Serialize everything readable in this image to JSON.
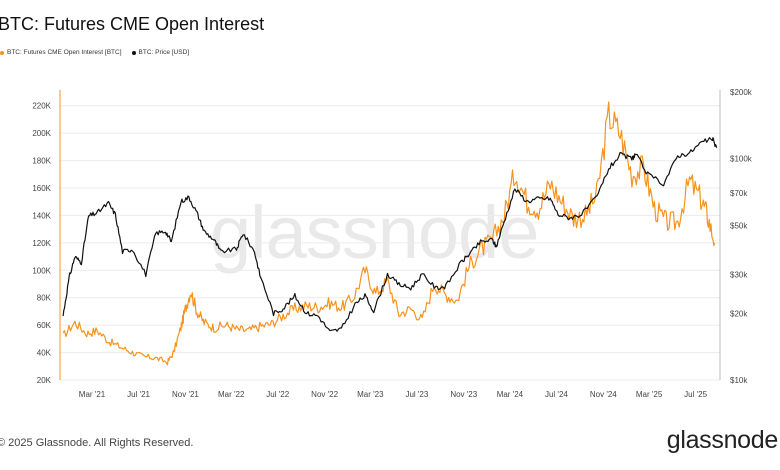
{
  "header": {
    "title": "BTC: Futures CME Open Interest",
    "legend": [
      {
        "label": "BTC: Futures CME Open Interest [BTC]",
        "color": "#f7931a"
      },
      {
        "label": "BTC: Price [USD]",
        "color": "#111111"
      }
    ]
  },
  "footer": {
    "copyright": "© 2025 Glassnode. All Rights Reserved.",
    "brand": "glassnode"
  },
  "watermark": "glassnode",
  "chart_data": {
    "type": "line",
    "x_ticks": [
      "Mar '21",
      "Jul '21",
      "Nov '21",
      "Mar '22",
      "Jul '22",
      "Nov '22",
      "Mar '23",
      "Jul '23",
      "Nov '23",
      "Mar '24",
      "Jul '24",
      "Nov '24",
      "Mar '25",
      "Jul '25"
    ],
    "y_left": {
      "ticks": [
        "20K",
        "40K",
        "60K",
        "80K",
        "100K",
        "120K",
        "140K",
        "160K",
        "180K",
        "200K",
        "220K"
      ],
      "lim": [
        20000,
        230000
      ]
    },
    "y_right": {
      "ticks": [
        "$10k",
        "$20k",
        "$30k",
        "$50k",
        "$70k",
        "$100k",
        "$200k"
      ],
      "tick_values": [
        10000,
        20000,
        30000,
        50000,
        70000,
        100000,
        200000
      ],
      "scale": "log",
      "lim": [
        10000,
        200000
      ]
    },
    "grid": true,
    "series": [
      {
        "name": "BTC: Futures CME Open Interest [BTC]",
        "axis": "left",
        "color": "#f7931a",
        "points": [
          [
            "2020-12-15",
            52000
          ],
          [
            "2021-01-15",
            62000
          ],
          [
            "2021-02-15",
            54000
          ],
          [
            "2021-03-15",
            56000
          ],
          [
            "2021-04-15",
            48000
          ],
          [
            "2021-05-15",
            44000
          ],
          [
            "2021-06-15",
            40000
          ],
          [
            "2021-07-15",
            37000
          ],
          [
            "2021-08-15",
            36000
          ],
          [
            "2021-09-15",
            33000
          ],
          [
            "2021-10-01",
            40000
          ],
          [
            "2021-10-20",
            58000
          ],
          [
            "2021-11-01",
            72000
          ],
          [
            "2021-11-15",
            85000
          ],
          [
            "2021-12-01",
            70000
          ],
          [
            "2021-12-20",
            62000
          ],
          [
            "2022-01-15",
            58000
          ],
          [
            "2022-02-15",
            60000
          ],
          [
            "2022-03-15",
            57000
          ],
          [
            "2022-04-15",
            56000
          ],
          [
            "2022-05-15",
            59000
          ],
          [
            "2022-06-15",
            61000
          ],
          [
            "2022-07-15",
            67000
          ],
          [
            "2022-08-15",
            72000
          ],
          [
            "2022-09-15",
            74000
          ],
          [
            "2022-10-15",
            73000
          ],
          [
            "2022-11-15",
            76000
          ],
          [
            "2022-12-15",
            73000
          ],
          [
            "2023-01-15",
            80000
          ],
          [
            "2023-02-15",
            100000
          ],
          [
            "2023-03-15",
            83000
          ],
          [
            "2023-04-15",
            92000
          ],
          [
            "2023-05-15",
            68000
          ],
          [
            "2023-06-15",
            72000
          ],
          [
            "2023-07-15",
            64000
          ],
          [
            "2023-08-15",
            90000
          ],
          [
            "2023-09-15",
            82000
          ],
          [
            "2023-10-15",
            78000
          ],
          [
            "2023-11-15",
            103000
          ],
          [
            "2023-12-15",
            115000
          ],
          [
            "2024-01-15",
            122000
          ],
          [
            "2024-02-15",
            140000
          ],
          [
            "2024-03-15",
            172000
          ],
          [
            "2024-04-15",
            150000
          ],
          [
            "2024-05-15",
            145000
          ],
          [
            "2024-06-15",
            163000
          ],
          [
            "2024-07-15",
            150000
          ],
          [
            "2024-08-15",
            138000
          ],
          [
            "2024-09-15",
            140000
          ],
          [
            "2024-10-15",
            155000
          ],
          [
            "2024-11-15",
            213000
          ],
          [
            "2024-12-15",
            200000
          ],
          [
            "2025-01-15",
            170000
          ],
          [
            "2025-02-15",
            175000
          ],
          [
            "2025-03-15",
            145000
          ],
          [
            "2025-04-15",
            135000
          ],
          [
            "2025-05-15",
            135000
          ],
          [
            "2025-06-15",
            165000
          ],
          [
            "2025-07-15",
            152000
          ],
          [
            "2025-08-01",
            140000
          ],
          [
            "2025-08-20",
            120000
          ]
        ]
      },
      {
        "name": "BTC: Price [USD]",
        "axis": "right",
        "color": "#111111",
        "points": [
          [
            "2020-12-15",
            19500
          ],
          [
            "2020-12-31",
            29000
          ],
          [
            "2021-01-15",
            36000
          ],
          [
            "2021-02-01",
            34000
          ],
          [
            "2021-02-20",
            55000
          ],
          [
            "2021-03-15",
            57000
          ],
          [
            "2021-04-13",
            63000
          ],
          [
            "2021-05-01",
            56000
          ],
          [
            "2021-05-20",
            38000
          ],
          [
            "2021-06-15",
            39000
          ],
          [
            "2021-07-20",
            30000
          ],
          [
            "2021-08-15",
            46000
          ],
          [
            "2021-09-10",
            47000
          ],
          [
            "2021-09-25",
            42000
          ],
          [
            "2021-10-20",
            64000
          ],
          [
            "2021-11-10",
            67000
          ],
          [
            "2021-12-01",
            57000
          ],
          [
            "2021-12-20",
            47000
          ],
          [
            "2022-01-15",
            43000
          ],
          [
            "2022-02-01",
            38000
          ],
          [
            "2022-03-15",
            39000
          ],
          [
            "2022-04-01",
            46000
          ],
          [
            "2022-05-01",
            38000
          ],
          [
            "2022-05-15",
            30000
          ],
          [
            "2022-06-20",
            20000
          ],
          [
            "2022-07-15",
            21000
          ],
          [
            "2022-08-15",
            24000
          ],
          [
            "2022-09-15",
            20000
          ],
          [
            "2022-10-15",
            19500
          ],
          [
            "2022-11-15",
            16500
          ],
          [
            "2022-12-15",
            17000
          ],
          [
            "2023-01-20",
            22000
          ],
          [
            "2023-02-15",
            24000
          ],
          [
            "2023-03-10",
            20500
          ],
          [
            "2023-04-15",
            30000
          ],
          [
            "2023-05-15",
            27000
          ],
          [
            "2023-06-15",
            26000
          ],
          [
            "2023-07-15",
            30000
          ],
          [
            "2023-08-20",
            26000
          ],
          [
            "2023-09-15",
            26500
          ],
          [
            "2023-10-25",
            34000
          ],
          [
            "2023-11-15",
            37000
          ],
          [
            "2023-12-15",
            42000
          ],
          [
            "2024-01-15",
            43000
          ],
          [
            "2024-01-25",
            40000
          ],
          [
            "2024-02-15",
            52000
          ],
          [
            "2024-03-14",
            73000
          ],
          [
            "2024-04-15",
            64000
          ],
          [
            "2024-05-15",
            66000
          ],
          [
            "2024-06-15",
            66000
          ],
          [
            "2024-07-05",
            56000
          ],
          [
            "2024-08-05",
            54000
          ],
          [
            "2024-09-05",
            56000
          ],
          [
            "2024-10-15",
            67000
          ],
          [
            "2024-11-15",
            90000
          ],
          [
            "2024-12-15",
            104000
          ],
          [
            "2025-01-15",
            100000
          ],
          [
            "2025-01-25",
            105000
          ],
          [
            "2025-02-25",
            85000
          ],
          [
            "2025-04-08",
            77000
          ],
          [
            "2025-05-15",
            103000
          ],
          [
            "2025-06-15",
            106000
          ],
          [
            "2025-07-15",
            118000
          ],
          [
            "2025-08-14",
            123000
          ],
          [
            "2025-08-25",
            112000
          ]
        ]
      }
    ]
  }
}
